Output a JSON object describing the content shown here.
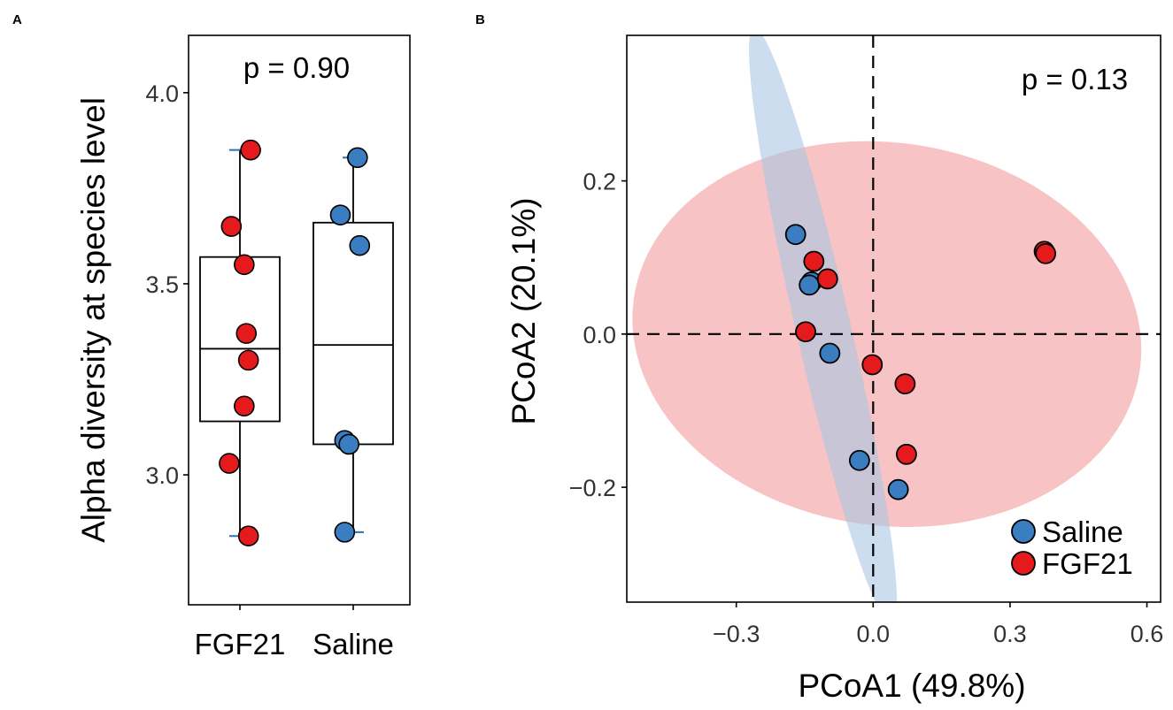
{
  "chart_data": [
    {
      "panel_label": "A",
      "type": "box",
      "title": "",
      "annotation": "p = 0.90",
      "xlabel": "",
      "ylabel": "Alpha diversity at species level",
      "categories": [
        "FGF21",
        "Saline"
      ],
      "ylim": [
        2.66,
        4.15
      ],
      "yticks": [
        3.0,
        3.5,
        4.0
      ],
      "ytick_labels": [
        "3.0",
        "3.5",
        "4.0"
      ],
      "boxes": [
        {
          "group": "FGF21",
          "q1": 3.14,
          "median": 3.33,
          "q3": 3.57,
          "whisker_low": 2.84,
          "whisker_high": 3.85
        },
        {
          "group": "Saline",
          "q1": 3.08,
          "median": 3.34,
          "q3": 3.66,
          "whisker_low": 2.85,
          "whisker_high": 3.83
        }
      ],
      "points": [
        {
          "group": "FGF21",
          "y": 3.85,
          "jitter": 0.05
        },
        {
          "group": "FGF21",
          "y": 3.65,
          "jitter": -0.04
        },
        {
          "group": "FGF21",
          "y": 3.55,
          "jitter": 0.02
        },
        {
          "group": "FGF21",
          "y": 3.37,
          "jitter": 0.03
        },
        {
          "group": "FGF21",
          "y": 3.3,
          "jitter": 0.04
        },
        {
          "group": "FGF21",
          "y": 3.18,
          "jitter": 0.02
        },
        {
          "group": "FGF21",
          "y": 3.03,
          "jitter": -0.05
        },
        {
          "group": "FGF21",
          "y": 2.84,
          "jitter": 0.04
        },
        {
          "group": "Saline",
          "y": 3.83,
          "jitter": 0.02
        },
        {
          "group": "Saline",
          "y": 3.68,
          "jitter": -0.06
        },
        {
          "group": "Saline",
          "y": 3.6,
          "jitter": 0.03
        },
        {
          "group": "Saline",
          "y": 3.09,
          "jitter": -0.04
        },
        {
          "group": "Saline",
          "y": 3.08,
          "jitter": -0.02
        },
        {
          "group": "Saline",
          "y": 2.85,
          "jitter": -0.04
        }
      ]
    },
    {
      "panel_label": "B",
      "type": "scatter",
      "title": "",
      "annotation": "p = 0.13",
      "xlabel": "PCoA1 (49.8%)",
      "ylabel": "PCoA2 (20.1%)",
      "xlim": [
        -0.54,
        0.63
      ],
      "ylim": [
        -0.35,
        0.39
      ],
      "xticks": [
        -0.3,
        0.0,
        0.3,
        0.6
      ],
      "xtick_labels": [
        "−0.3",
        "0.0",
        "0.3",
        "0.6"
      ],
      "yticks": [
        -0.2,
        0.0,
        0.2
      ],
      "ytick_labels": [
        "−0.2",
        "0.0",
        "0.2"
      ],
      "reference_lines": {
        "x": 0.0,
        "y": 0.0
      },
      "legend": {
        "position": "bottom-right",
        "entries": [
          "Saline",
          "FGF21"
        ]
      },
      "ellipses": [
        {
          "group": "FGF21",
          "cx": 0.03,
          "cy": 0.0,
          "rx": 0.56,
          "ry": 0.25,
          "angle_deg": 8
        },
        {
          "group": "Saline",
          "cx": -0.11,
          "cy": 0.01,
          "rx": 0.06,
          "ry": 0.4,
          "angle_deg": -13
        }
      ],
      "series": [
        {
          "name": "Saline",
          "points": [
            [
              -0.17,
              0.13
            ],
            [
              -0.135,
              0.068
            ],
            [
              -0.14,
              0.064
            ],
            [
              -0.095,
              -0.025
            ],
            [
              -0.03,
              -0.165
            ],
            [
              0.055,
              -0.203
            ]
          ]
        },
        {
          "name": "FGF21",
          "points": [
            [
              -0.13,
              0.095
            ],
            [
              -0.1,
              0.072
            ],
            [
              -0.148,
              0.003
            ],
            [
              -0.002,
              -0.04
            ],
            [
              0.07,
              -0.065
            ],
            [
              0.073,
              -0.157
            ],
            [
              0.375,
              0.108
            ],
            [
              0.378,
              0.105
            ]
          ]
        }
      ]
    }
  ],
  "colors": {
    "saline": "#3a7dc0",
    "fgf21": "#e41a1c",
    "saline_ellipse": "#a8c6e2",
    "fgf21_ellipse": "#f4a9ab",
    "whisker_cap": "#2f6fb0",
    "axis": "#000000",
    "tick_label": "#333333"
  }
}
